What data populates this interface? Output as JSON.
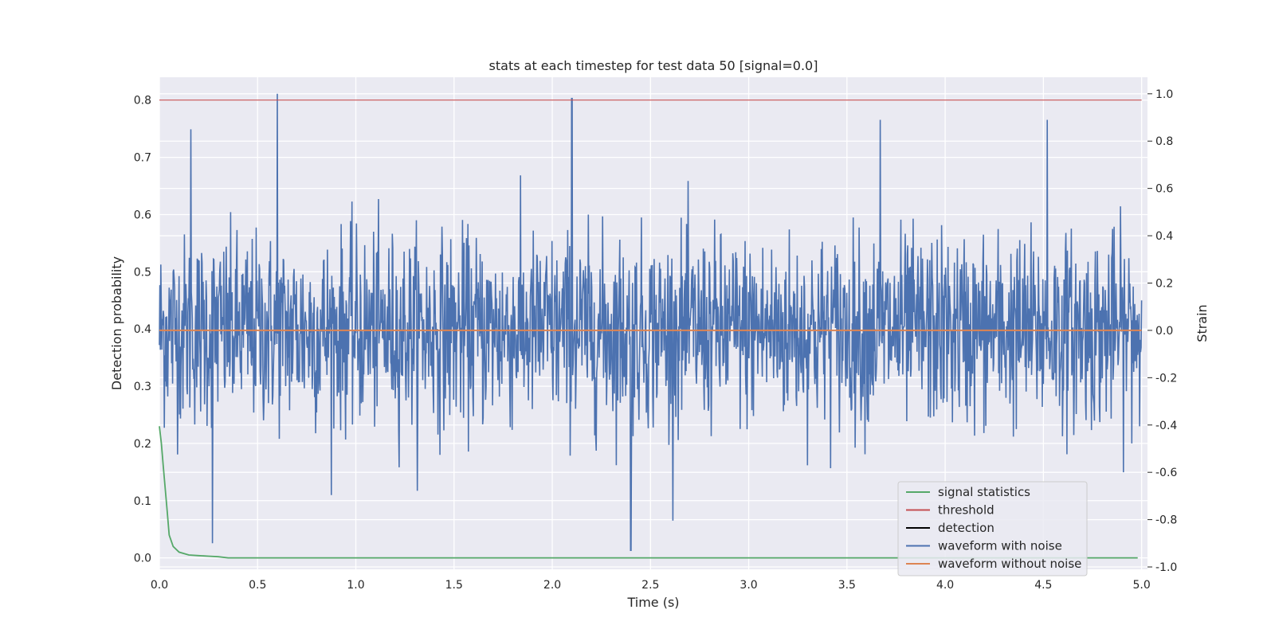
{
  "chart_data": {
    "type": "line",
    "title": "stats at each timestep for test data 50 [signal=0.0]",
    "xlabel": "Time (s)",
    "ylabel": "Detection probability",
    "y2label": "Strain",
    "xlim": [
      0.0,
      5.03
    ],
    "ylim": [
      -0.02,
      0.84
    ],
    "y2lim": [
      -1.01,
      1.07
    ],
    "x_ticks": [
      "0.0",
      "0.5",
      "1.0",
      "1.5",
      "2.0",
      "2.5",
      "3.0",
      "3.5",
      "4.0",
      "4.5",
      "5.0"
    ],
    "y_ticks": [
      "0.0",
      "0.1",
      "0.2",
      "0.3",
      "0.4",
      "0.5",
      "0.6",
      "0.7",
      "0.8"
    ],
    "y2_ticks": [
      "-1.0",
      "-0.8",
      "-0.6",
      "-0.4",
      "-0.2",
      "0.0",
      "0.2",
      "0.4",
      "0.6",
      "0.8",
      "1.0"
    ],
    "grid": true,
    "legend_position": "lower right",
    "series": [
      {
        "name": "signal statistics",
        "color": "#55a868",
        "axis": "left",
        "x": [
          0.0,
          0.01,
          0.02,
          0.03,
          0.04,
          0.05,
          0.07,
          0.1,
          0.15,
          0.2,
          0.25,
          0.3,
          0.35,
          0.4,
          1.0,
          2.0,
          3.0,
          4.0,
          4.98
        ],
        "y": [
          0.23,
          0.2,
          0.16,
          0.12,
          0.08,
          0.04,
          0.02,
          0.01,
          0.005,
          0.004,
          0.003,
          0.002,
          0.0,
          0.0,
          0.0,
          0.0,
          0.0,
          0.0,
          0.0
        ]
      },
      {
        "name": "threshold",
        "color": "#c44e52",
        "axis": "left",
        "x": [
          0.0,
          5.0
        ],
        "y": [
          0.8,
          0.8
        ]
      },
      {
        "name": "detection",
        "color": "#000000",
        "axis": "left",
        "x": [],
        "y": []
      },
      {
        "name": "waveform with noise",
        "color": "#4c72b0",
        "axis": "right",
        "x_range": [
          0.0,
          5.0
        ],
        "approx_std": 0.2,
        "peaks": [
          {
            "x": 0.6,
            "y": 1.0
          },
          {
            "x": 2.1,
            "y": 0.98
          },
          {
            "x": 2.4,
            "y": -0.93
          },
          {
            "x": 0.27,
            "y": -0.9
          },
          {
            "x": 0.16,
            "y": 0.85
          },
          {
            "x": 4.52,
            "y": 0.89
          },
          {
            "x": 3.67,
            "y": 0.89
          }
        ]
      },
      {
        "name": "waveform without noise",
        "color": "#dd8452",
        "axis": "right",
        "x": [
          0.0,
          5.0
        ],
        "y": [
          0.0,
          0.0
        ]
      }
    ]
  }
}
